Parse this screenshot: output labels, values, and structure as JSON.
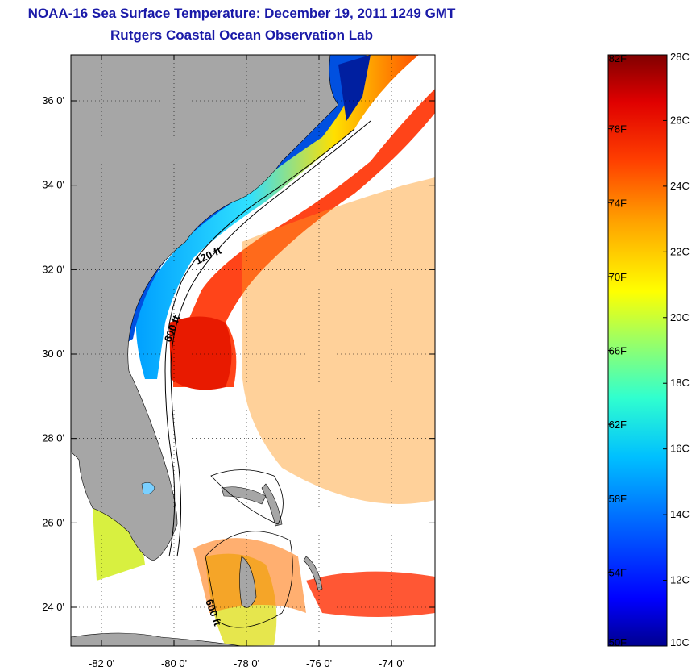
{
  "title": {
    "line1": "NOAA-16 Sea Surface Temperature:  December 19, 2011 1249 GMT",
    "line2": "Rutgers Coastal Ocean Observation Lab"
  },
  "map": {
    "lat_ticks": [
      {
        "value": 36,
        "label": "36 0'"
      },
      {
        "value": 34,
        "label": "34 0'"
      },
      {
        "value": 32,
        "label": "32 0'"
      },
      {
        "value": 30,
        "label": "30 0'"
      },
      {
        "value": 28,
        "label": "28 0'"
      },
      {
        "value": 26,
        "label": "26 0'"
      },
      {
        "value": 24,
        "label": "24 0'"
      }
    ],
    "lon_ticks": [
      {
        "value": -82,
        "label": "-82 0'"
      },
      {
        "value": -80,
        "label": "-80 0'"
      },
      {
        "value": -78,
        "label": "-78 0'"
      },
      {
        "value": -76,
        "label": "-76 0'"
      },
      {
        "value": -74,
        "label": "-74 0'"
      }
    ],
    "contours": [
      {
        "label": "120 ft"
      },
      {
        "label": "600 ft"
      },
      {
        "label": "600 ft"
      }
    ],
    "colors": {
      "land": "#a6a6a6",
      "ocean_missing": "#ffffff"
    }
  },
  "colorbar": {
    "min_c": 10,
    "max_c": 28,
    "min_f": 50,
    "max_f": 82,
    "celsius_labels": [
      "28C",
      "26C",
      "24C",
      "22C",
      "20C",
      "18C",
      "16C",
      "14C",
      "12C",
      "10C"
    ],
    "fahrenheit_labels": [
      "82F",
      "78F",
      "74F",
      "70F",
      "66F",
      "62F",
      "58F",
      "54F",
      "50F"
    ],
    "colors": [
      "#00008f",
      "#0000ff",
      "#0060ff",
      "#00c0ff",
      "#30ffcf",
      "#a0ff60",
      "#ffff00",
      "#ffa000",
      "#ff4000",
      "#e00000",
      "#800000"
    ]
  }
}
